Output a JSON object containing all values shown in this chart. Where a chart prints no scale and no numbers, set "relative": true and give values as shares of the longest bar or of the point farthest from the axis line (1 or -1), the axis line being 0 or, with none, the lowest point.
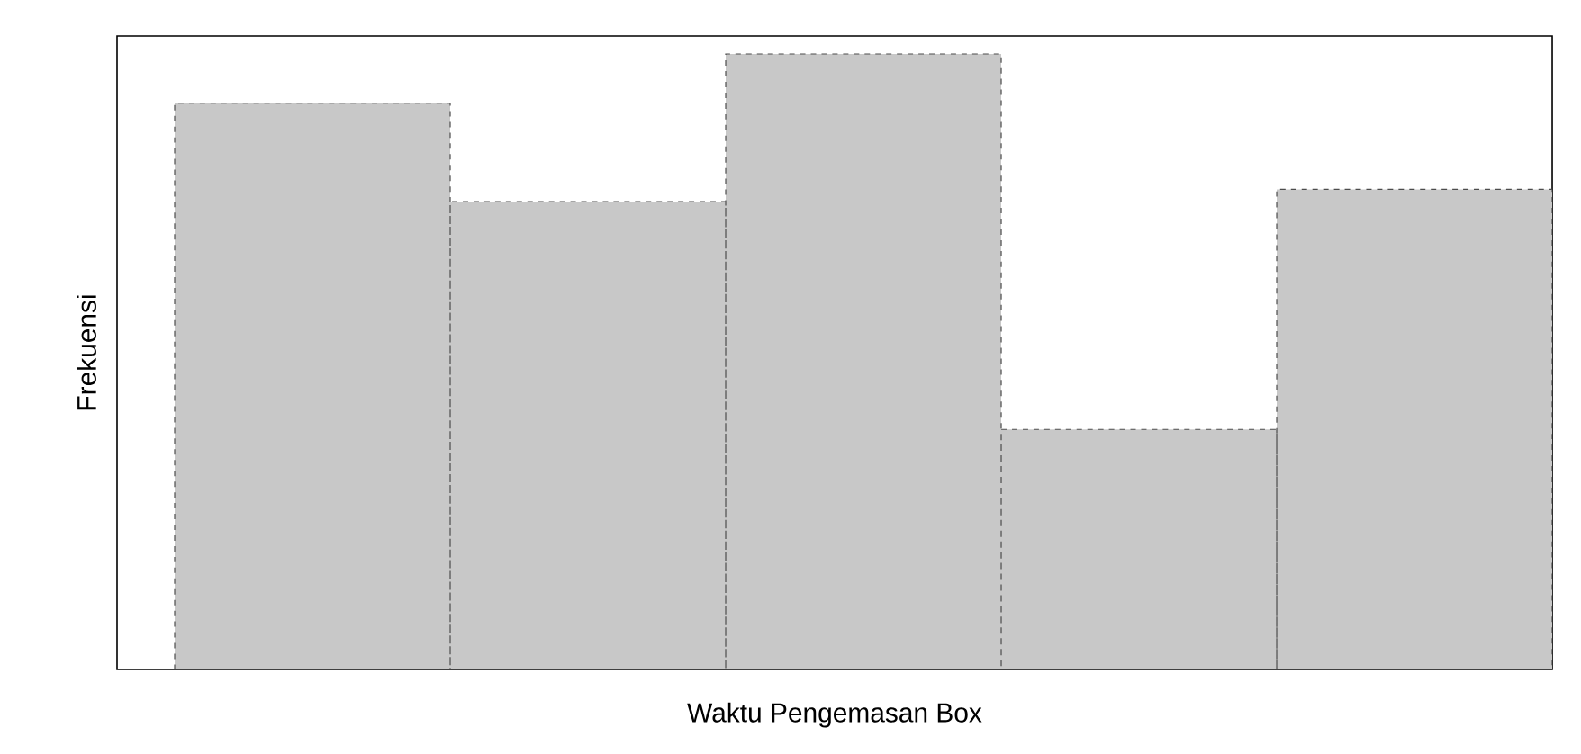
{
  "chart_data": {
    "type": "bar",
    "xlabel": "Waktu Pengemasan Box",
    "ylabel": "Frekuensi",
    "categories": [
      null,
      null,
      null,
      null,
      null
    ],
    "values": [
      0.92,
      0.76,
      1,
      0.39,
      0.78
    ],
    "color": "#c8c8c8",
    "relative": true,
    "line_style": "dashed"
  }
}
